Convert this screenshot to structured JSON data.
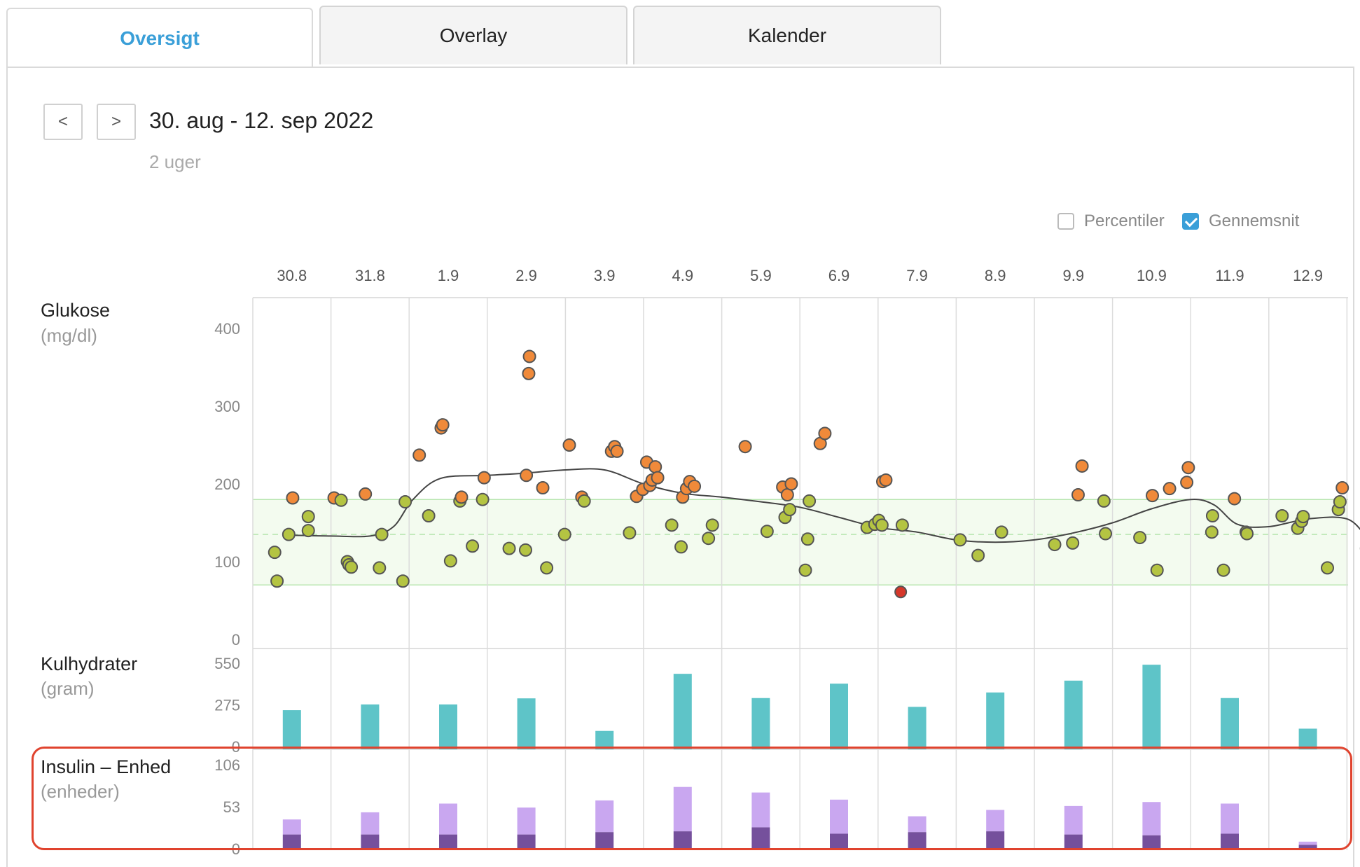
{
  "tabs": [
    {
      "label": "Oversigt",
      "active": true
    },
    {
      "label": "Overlay",
      "active": false
    },
    {
      "label": "Kalender",
      "active": false
    }
  ],
  "nav": {
    "prev_label": "<",
    "next_label": ">"
  },
  "range": {
    "title": "30. aug - 12. sep 2022",
    "subtitle": "2 uger"
  },
  "options": {
    "percentiles": {
      "label": "Percentiler",
      "checked": false
    },
    "average": {
      "label": "Gennemsnit",
      "checked": true
    }
  },
  "colors": {
    "glucose_high": "#f08a3a",
    "glucose_in_range": "#b4c442",
    "glucose_low": "#d6372a",
    "carbs": "#5ec4c8",
    "insulin_bolus": "#c9a7f0",
    "insulin_basal": "#75509c",
    "target_band": "#f3fbef",
    "target_line": "#b8e6b0",
    "average_line": "#444444",
    "highlight": "#e0432e"
  },
  "sections": {
    "glucose": {
      "title": "Glukose",
      "unit": "(mg/dl)"
    },
    "carbs": {
      "title": "Kulhydrater",
      "unit": "(gram)"
    },
    "insulin": {
      "title": "Insulin – Enhed",
      "unit": "(enheder)"
    }
  },
  "chart_data": [
    {
      "type": "scatter",
      "categories": [
        "30.8",
        "31.8",
        "1.9",
        "2.9",
        "3.9",
        "4.9",
        "5.9",
        "6.9",
        "7.9",
        "8.9",
        "9.9",
        "10.9",
        "11.9",
        "12.9"
      ],
      "ylim": [
        0,
        400
      ],
      "yticks": [
        0,
        100,
        200,
        300,
        400
      ],
      "target_range": [
        70,
        180
      ],
      "target_mid": 135,
      "points": [
        {
          "x": 0.28,
          "y": 112
        },
        {
          "x": 0.31,
          "y": 75
        },
        {
          "x": 0.46,
          "y": 135
        },
        {
          "x": 0.51,
          "y": 182
        },
        {
          "x": 0.71,
          "y": 158
        },
        {
          "x": 0.71,
          "y": 140
        },
        {
          "x": 1.04,
          "y": 182
        },
        {
          "x": 1.13,
          "y": 179
        },
        {
          "x": 1.21,
          "y": 100
        },
        {
          "x": 1.23,
          "y": 96
        },
        {
          "x": 1.26,
          "y": 93
        },
        {
          "x": 1.44,
          "y": 187
        },
        {
          "x": 1.62,
          "y": 92
        },
        {
          "x": 1.65,
          "y": 135
        },
        {
          "x": 1.92,
          "y": 75
        },
        {
          "x": 1.95,
          "y": 177
        },
        {
          "x": 2.13,
          "y": 237
        },
        {
          "x": 2.25,
          "y": 159
        },
        {
          "x": 2.41,
          "y": 272
        },
        {
          "x": 2.43,
          "y": 276
        },
        {
          "x": 2.53,
          "y": 101
        },
        {
          "x": 2.65,
          "y": 178
        },
        {
          "x": 2.67,
          "y": 183
        },
        {
          "x": 2.81,
          "y": 120
        },
        {
          "x": 2.94,
          "y": 180
        },
        {
          "x": 2.96,
          "y": 208
        },
        {
          "x": 3.28,
          "y": 117
        },
        {
          "x": 3.49,
          "y": 115
        },
        {
          "x": 3.5,
          "y": 211
        },
        {
          "x": 3.53,
          "y": 342
        },
        {
          "x": 3.54,
          "y": 364
        },
        {
          "x": 3.71,
          "y": 195
        },
        {
          "x": 3.76,
          "y": 92
        },
        {
          "x": 3.99,
          "y": 135
        },
        {
          "x": 4.05,
          "y": 250
        },
        {
          "x": 4.21,
          "y": 183
        },
        {
          "x": 4.24,
          "y": 178
        },
        {
          "x": 4.59,
          "y": 242
        },
        {
          "x": 4.63,
          "y": 248
        },
        {
          "x": 4.66,
          "y": 242
        },
        {
          "x": 4.82,
          "y": 137
        },
        {
          "x": 4.91,
          "y": 184
        },
        {
          "x": 4.99,
          "y": 193
        },
        {
          "x": 5.04,
          "y": 228
        },
        {
          "x": 5.08,
          "y": 198
        },
        {
          "x": 5.11,
          "y": 205
        },
        {
          "x": 5.15,
          "y": 222
        },
        {
          "x": 5.18,
          "y": 208
        },
        {
          "x": 5.36,
          "y": 147
        },
        {
          "x": 5.48,
          "y": 119
        },
        {
          "x": 5.5,
          "y": 183
        },
        {
          "x": 5.55,
          "y": 194
        },
        {
          "x": 5.59,
          "y": 203
        },
        {
          "x": 5.65,
          "y": 197
        },
        {
          "x": 5.83,
          "y": 130
        },
        {
          "x": 5.88,
          "y": 147
        },
        {
          "x": 6.3,
          "y": 248
        },
        {
          "x": 6.58,
          "y": 139
        },
        {
          "x": 6.78,
          "y": 196
        },
        {
          "x": 6.81,
          "y": 157
        },
        {
          "x": 6.84,
          "y": 186
        },
        {
          "x": 6.87,
          "y": 167
        },
        {
          "x": 6.89,
          "y": 200
        },
        {
          "x": 7.07,
          "y": 89
        },
        {
          "x": 7.1,
          "y": 129
        },
        {
          "x": 7.12,
          "y": 178
        },
        {
          "x": 7.26,
          "y": 252
        },
        {
          "x": 7.32,
          "y": 265
        },
        {
          "x": 7.86,
          "y": 144
        },
        {
          "x": 7.96,
          "y": 148
        },
        {
          "x": 8.01,
          "y": 153
        },
        {
          "x": 8.05,
          "y": 147
        },
        {
          "x": 8.06,
          "y": 203
        },
        {
          "x": 8.1,
          "y": 205
        },
        {
          "x": 8.29,
          "y": 61
        },
        {
          "x": 8.31,
          "y": 147
        },
        {
          "x": 9.05,
          "y": 128
        },
        {
          "x": 9.28,
          "y": 108
        },
        {
          "x": 9.58,
          "y": 138
        },
        {
          "x": 10.26,
          "y": 122
        },
        {
          "x": 10.49,
          "y": 124
        },
        {
          "x": 10.56,
          "y": 186
        },
        {
          "x": 10.61,
          "y": 223
        },
        {
          "x": 10.89,
          "y": 178
        },
        {
          "x": 10.91,
          "y": 136
        },
        {
          "x": 11.35,
          "y": 131
        },
        {
          "x": 11.51,
          "y": 185
        },
        {
          "x": 11.57,
          "y": 89
        },
        {
          "x": 11.73,
          "y": 194
        },
        {
          "x": 11.95,
          "y": 202
        },
        {
          "x": 11.97,
          "y": 221
        },
        {
          "x": 12.27,
          "y": 138
        },
        {
          "x": 12.28,
          "y": 159
        },
        {
          "x": 12.42,
          "y": 89
        },
        {
          "x": 12.56,
          "y": 181
        },
        {
          "x": 12.71,
          "y": 138
        },
        {
          "x": 12.72,
          "y": 136
        },
        {
          "x": 13.17,
          "y": 159
        },
        {
          "x": 13.37,
          "y": 143
        },
        {
          "x": 13.42,
          "y": 152
        },
        {
          "x": 13.44,
          "y": 158
        },
        {
          "x": 13.75,
          "y": 92
        },
        {
          "x": 13.89,
          "y": 167
        },
        {
          "x": 13.91,
          "y": 177
        },
        {
          "x": 13.94,
          "y": 195
        },
        {
          "x": 14.25,
          "y": 117
        }
      ],
      "average_line": [
        {
          "x": 0.5,
          "y": 134
        },
        {
          "x": 1.0,
          "y": 133
        },
        {
          "x": 1.5,
          "y": 133
        },
        {
          "x": 1.8,
          "y": 145
        },
        {
          "x": 2.05,
          "y": 180
        },
        {
          "x": 2.4,
          "y": 207
        },
        {
          "x": 3.0,
          "y": 211
        },
        {
          "x": 3.5,
          "y": 214
        },
        {
          "x": 4.0,
          "y": 218
        },
        {
          "x": 4.5,
          "y": 218
        },
        {
          "x": 5.0,
          "y": 200
        },
        {
          "x": 5.5,
          "y": 188
        },
        {
          "x": 6.0,
          "y": 183
        },
        {
          "x": 6.5,
          "y": 177
        },
        {
          "x": 7.0,
          "y": 170
        },
        {
          "x": 7.5,
          "y": 157
        },
        {
          "x": 8.0,
          "y": 144
        },
        {
          "x": 8.5,
          "y": 138
        },
        {
          "x": 9.0,
          "y": 128
        },
        {
          "x": 9.5,
          "y": 125
        },
        {
          "x": 10.0,
          "y": 128
        },
        {
          "x": 10.5,
          "y": 137
        },
        {
          "x": 11.0,
          "y": 150
        },
        {
          "x": 11.5,
          "y": 168
        },
        {
          "x": 12.0,
          "y": 180
        },
        {
          "x": 12.3,
          "y": 173
        },
        {
          "x": 12.6,
          "y": 148
        },
        {
          "x": 13.0,
          "y": 145
        },
        {
          "x": 13.5,
          "y": 155
        },
        {
          "x": 14.0,
          "y": 155
        },
        {
          "x": 14.27,
          "y": 130
        },
        {
          "x": 14.45,
          "y": 116
        }
      ]
    },
    {
      "type": "bar",
      "categories": [
        "30.8",
        "31.8",
        "1.9",
        "2.9",
        "3.9",
        "4.9",
        "5.9",
        "6.9",
        "7.9",
        "8.9",
        "9.9",
        "10.9",
        "11.9",
        "12.9"
      ],
      "ylim": [
        0,
        550
      ],
      "yticks": [
        0,
        275,
        550
      ],
      "values": [
        240,
        278,
        278,
        318,
        103,
        480,
        320,
        415,
        262,
        357,
        435,
        540,
        320,
        118
      ]
    },
    {
      "type": "bar",
      "categories": [
        "30.8",
        "31.8",
        "1.9",
        "2.9",
        "3.9",
        "4.9",
        "5.9",
        "6.9",
        "7.9",
        "8.9",
        "9.9",
        "10.9",
        "11.9",
        "12.9"
      ],
      "ylim": [
        0,
        106
      ],
      "yticks": [
        0,
        53,
        106
      ],
      "stacked": true,
      "series": [
        {
          "values": [
            18,
            18,
            18,
            18,
            21,
            22,
            27,
            19,
            21,
            22,
            18,
            17,
            19,
            5
          ]
        },
        {
          "values": [
            19,
            28,
            39,
            34,
            40,
            56,
            44,
            43,
            20,
            27,
            36,
            42,
            38,
            4
          ]
        }
      ]
    }
  ]
}
